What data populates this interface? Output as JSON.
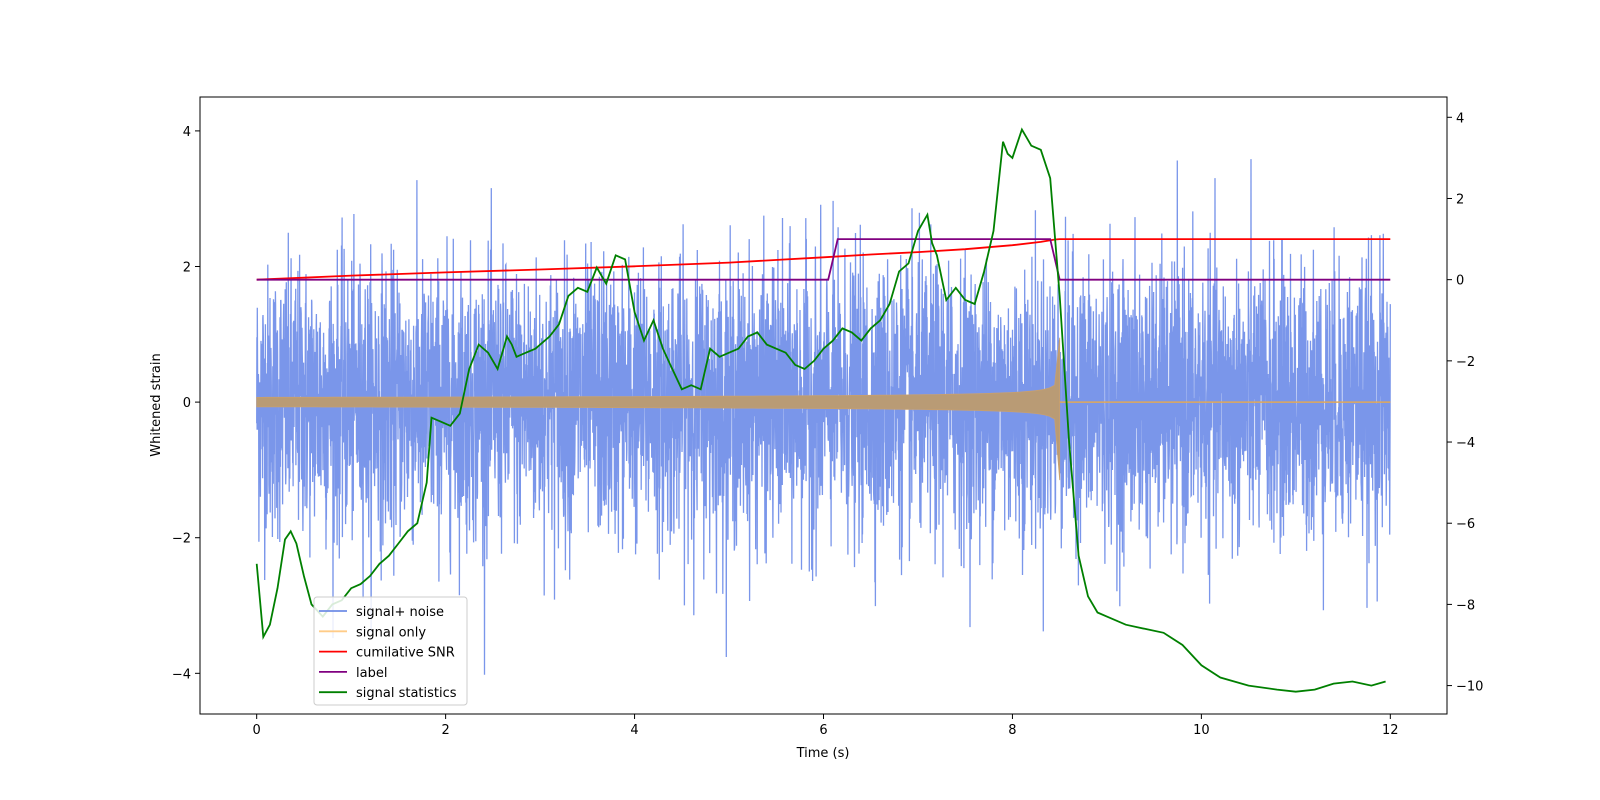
{
  "chart_data": {
    "type": "line",
    "xlabel": "Time (s)",
    "ylabel": "Whitened strain",
    "xlim": [
      -0.6,
      12.6
    ],
    "ylim": [
      -4.6,
      4.5
    ],
    "y2lim": [
      -10.7,
      4.5
    ],
    "xticks": [
      0,
      2,
      4,
      6,
      8,
      10,
      12
    ],
    "yticks": [
      -4,
      -2,
      0,
      2,
      4
    ],
    "y2ticks": [
      -10,
      -8,
      -6,
      -4,
      -2,
      0,
      2,
      4
    ],
    "xtick_labels": [
      "0",
      "2",
      "4",
      "6",
      "8",
      "10",
      "12"
    ],
    "ytick_labels": [
      "−4",
      "−2",
      "0",
      "2",
      "4"
    ],
    "y2tick_labels": [
      "−10",
      "−8",
      "−6",
      "−4",
      "−2",
      "0",
      "2",
      "4"
    ],
    "grid": false,
    "legend_position": "lower-left",
    "series": [
      {
        "name": "signal+ noise",
        "axis": "left",
        "color": "#4169e1",
        "style": "dense-noise",
        "description_values": {
          "x_range": [
            0,
            12
          ],
          "noise_sigma": 1.0,
          "max_spike": 4.1,
          "min_spike": -4.1
        }
      },
      {
        "name": "signal only",
        "axis": "left",
        "color": "#ffa500",
        "style": "chirp",
        "chirp": {
          "x_start": 0,
          "x_merge": 8.5,
          "x_end": 12,
          "amp_start": 0.07,
          "amp_merge_upper": 0.95,
          "amp_merge_lower": -1.15
        }
      },
      {
        "name": "cumilative SNR",
        "axis": "right",
        "color": "#ff0000",
        "x": [
          0,
          1,
          2,
          3,
          4,
          5,
          6,
          6.5,
          7,
          7.5,
          8,
          8.3,
          8.45,
          8.5,
          9,
          10,
          11,
          12
        ],
        "y": [
          0,
          0.1,
          0.18,
          0.25,
          0.33,
          0.42,
          0.55,
          0.62,
          0.68,
          0.75,
          0.85,
          0.93,
          0.99,
          1.0,
          1.0,
          1.0,
          1.0,
          1.0
        ]
      },
      {
        "name": "label",
        "axis": "right",
        "color": "#800080",
        "x": [
          0,
          6.05,
          6.15,
          8.4,
          8.5,
          12
        ],
        "y": [
          0,
          0,
          1,
          1,
          0,
          0
        ]
      },
      {
        "name": "signal statistics",
        "axis": "right",
        "color": "#008000",
        "x": [
          0,
          0.07,
          0.14,
          0.22,
          0.3,
          0.36,
          0.42,
          0.5,
          0.58,
          0.7,
          0.8,
          0.9,
          1.0,
          1.1,
          1.2,
          1.3,
          1.4,
          1.5,
          1.6,
          1.7,
          1.8,
          1.85,
          1.95,
          2.05,
          2.15,
          2.25,
          2.35,
          2.45,
          2.55,
          2.65,
          2.7,
          2.75,
          2.85,
          2.95,
          3.1,
          3.2,
          3.3,
          3.4,
          3.5,
          3.6,
          3.7,
          3.8,
          3.9,
          4.0,
          4.1,
          4.2,
          4.3,
          4.4,
          4.5,
          4.6,
          4.7,
          4.8,
          4.9,
          5.0,
          5.1,
          5.2,
          5.3,
          5.4,
          5.5,
          5.6,
          5.7,
          5.8,
          5.9,
          6.0,
          6.1,
          6.2,
          6.3,
          6.4,
          6.5,
          6.6,
          6.7,
          6.8,
          6.9,
          7.0,
          7.1,
          7.15,
          7.2,
          7.3,
          7.4,
          7.5,
          7.6,
          7.7,
          7.8,
          7.9,
          7.95,
          8.0,
          8.1,
          8.15,
          8.2,
          8.3,
          8.4,
          8.5,
          8.6,
          8.7,
          8.8,
          8.9,
          9.0,
          9.2,
          9.4,
          9.6,
          9.8,
          10.0,
          10.2,
          10.5,
          10.8,
          11.0,
          11.2,
          11.4,
          11.6,
          11.8,
          11.95
        ],
        "y": [
          -7.0,
          -8.8,
          -8.5,
          -7.6,
          -6.4,
          -6.2,
          -6.5,
          -7.3,
          -8.0,
          -8.3,
          -8.0,
          -7.9,
          -7.6,
          -7.5,
          -7.3,
          -7.0,
          -6.8,
          -6.5,
          -6.2,
          -6.0,
          -5.0,
          -3.4,
          -3.5,
          -3.6,
          -3.3,
          -2.2,
          -1.6,
          -1.8,
          -2.2,
          -1.4,
          -1.6,
          -1.9,
          -1.8,
          -1.7,
          -1.4,
          -1.1,
          -0.4,
          -0.2,
          -0.3,
          0.3,
          -0.1,
          0.6,
          0.5,
          -0.8,
          -1.5,
          -1.0,
          -1.7,
          -2.2,
          -2.7,
          -2.6,
          -2.7,
          -1.7,
          -1.9,
          -1.8,
          -1.7,
          -1.4,
          -1.3,
          -1.6,
          -1.7,
          -1.8,
          -2.1,
          -2.2,
          -2.0,
          -1.7,
          -1.5,
          -1.2,
          -1.3,
          -1.5,
          -1.2,
          -1.0,
          -0.6,
          0.2,
          0.4,
          1.2,
          1.6,
          0.9,
          0.6,
          -0.5,
          -0.2,
          -0.5,
          -0.6,
          0.2,
          1.2,
          3.4,
          3.1,
          3.0,
          3.7,
          3.5,
          3.3,
          3.2,
          2.5,
          -0.4,
          -4.0,
          -6.8,
          -7.8,
          -8.2,
          -8.3,
          -8.5,
          -8.6,
          -8.7,
          -9.0,
          -9.5,
          -9.8,
          -10.0,
          -10.1,
          -10.15,
          -10.1,
          -9.95,
          -9.9,
          -10.0,
          -9.9
        ]
      }
    ]
  }
}
